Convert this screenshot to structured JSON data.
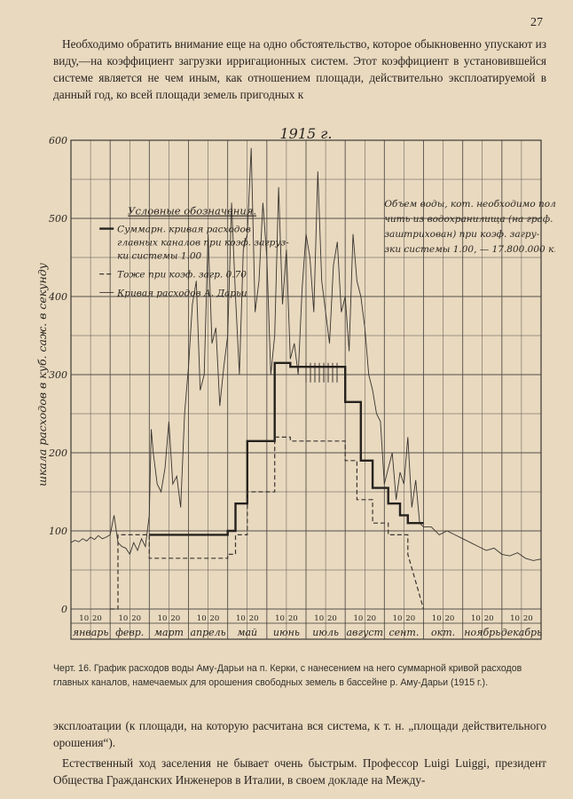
{
  "page_number": "27",
  "paragraph_top": "Необходимо обратить внимание еще на одно обстоятельство, которое обыкновенно упускают из виду,—на коэффициент загрузки ирригационных систем. Этот коэффициент в установившейся системе является не чем иным, как отношением площади, действительно эксплоатируемой в данный год, ко всей площади земель пригодных к",
  "caption": "Черт. 16. График расходов воды Аму-Дарьи на п. Керки, с нанесением на него суммарной кривой расходов главных каналов, намечаемых для орошения свободных земель в бассейне р. Аму-Дарьи (1915 г.).",
  "paragraph_bottom_1": "эксплоатации (к площади, на которую расчитана вся система, к т. н. „площади действительного орошения“).",
  "paragraph_bottom_2": "Естественный ход заселения не бывает очень быстрым. Профессор Luigi Luiggi, президент Общества Гражданских Инженеров в Италии, в своем докладе на Между-",
  "chart_data": {
    "type": "line",
    "title": "1915 г.",
    "ylabel": "шкала расходов в куб. саж. в секунду",
    "ylim": [
      0,
      600
    ],
    "y_ticks": [
      "0",
      "100",
      "200",
      "300",
      "400",
      "500",
      "600"
    ],
    "months": [
      "январь",
      "февр.",
      "март",
      "апрель",
      "май",
      "июнь",
      "июль",
      "август",
      "сент.",
      "окт.",
      "ноябрь",
      "декабрь"
    ],
    "day_ticks": [
      "10",
      "20"
    ],
    "legend_title": "Условные обозначения.",
    "legend_items": [
      "Суммарн. кривая расходов главных каналов при коэф. загрузки системы 1.00",
      "Тоже при коэф. загр. 0.70",
      "Кривая расходов А. Дарьи"
    ],
    "annotation": "Объем воды, кот. необходимо получить из водохранилища (на граф. заштрихован) при коэф. загрузки системы 1.00, — 17.800.000 к. с.",
    "series": [
      {
        "style": "thin",
        "x": [
          0,
          0.1,
          0.2,
          0.3,
          0.4,
          0.5,
          0.6,
          0.7,
          0.8,
          0.9,
          1.0,
          1.1,
          1.2,
          1.3,
          1.4,
          1.5,
          1.6,
          1.7,
          1.8,
          1.9,
          2.0,
          2.05,
          2.1,
          2.2,
          2.3,
          2.4,
          2.5,
          2.6,
          2.7,
          2.8,
          2.9,
          3.0,
          3.1,
          3.2,
          3.3,
          3.4,
          3.5,
          3.6,
          3.7,
          3.8,
          3.9,
          4.0,
          4.1,
          4.2,
          4.3,
          4.4,
          4.5,
          4.6,
          4.7,
          4.8,
          4.9,
          5.0,
          5.1,
          5.2,
          5.3,
          5.4,
          5.5,
          5.6,
          5.7,
          5.8,
          5.9,
          6.0,
          6.1,
          6.2,
          6.3,
          6.4,
          6.5,
          6.6,
          6.7,
          6.8,
          6.9,
          7.0,
          7.1,
          7.2,
          7.3,
          7.4,
          7.5,
          7.6,
          7.7,
          7.8,
          7.9,
          8.0,
          8.1,
          8.2,
          8.3,
          8.4,
          8.5,
          8.6,
          8.7,
          8.8,
          8.9,
          9.0,
          9.2,
          9.4,
          9.6,
          9.8,
          10.0,
          10.2,
          10.4,
          10.6,
          10.8,
          11.0,
          11.2,
          11.4,
          11.6,
          11.8,
          12.0
        ],
        "y": [
          85,
          88,
          86,
          90,
          87,
          92,
          89,
          94,
          90,
          92,
          95,
          120,
          85,
          80,
          78,
          70,
          85,
          75,
          90,
          80,
          120,
          230,
          200,
          160,
          150,
          180,
          240,
          160,
          170,
          130,
          250,
          310,
          390,
          420,
          280,
          300,
          480,
          340,
          360,
          260,
          310,
          350,
          520,
          400,
          300,
          460,
          480,
          590,
          380,
          420,
          520,
          450,
          300,
          350,
          540,
          390,
          460,
          320,
          340,
          300,
          410,
          480,
          450,
          380,
          560,
          420,
          380,
          340,
          440,
          470,
          380,
          400,
          330,
          480,
          420,
          400,
          360,
          300,
          280,
          250,
          240,
          160,
          180,
          200,
          140,
          175,
          160,
          220,
          130,
          165,
          110,
          105,
          105,
          95,
          100,
          95,
          90,
          85,
          80,
          75,
          78,
          70,
          68,
          72,
          65,
          62,
          64
        ]
      },
      {
        "style": "bold",
        "x": [
          2,
          4,
          4,
          4.2,
          4.2,
          4.5,
          4.5,
          5.2,
          5.2,
          5.6,
          5.6,
          7,
          7,
          7.4,
          7.4,
          7.7,
          7.7,
          8.1,
          8.1,
          8.4,
          8.4,
          8.6,
          8.6,
          9
        ],
        "y": [
          95,
          95,
          100,
          100,
          135,
          135,
          215,
          215,
          315,
          315,
          310,
          310,
          265,
          265,
          190,
          190,
          155,
          155,
          135,
          135,
          120,
          120,
          110,
          110
        ]
      },
      {
        "style": "dashed",
        "x": [
          1,
          1.2,
          1.2,
          2,
          2,
          4,
          4,
          4.2,
          4.2,
          4.5,
          4.5,
          5.2,
          5.2,
          5.6,
          5.6,
          7,
          7,
          7.3,
          7.3,
          7.7,
          7.7,
          8.1,
          8.1,
          8.6,
          8.6,
          9
        ],
        "y": [
          0,
          0,
          95,
          95,
          65,
          65,
          70,
          70,
          95,
          95,
          150,
          150,
          220,
          220,
          215,
          215,
          190,
          190,
          140,
          140,
          110,
          110,
          95,
          95,
          70,
          0
        ]
      },
      {
        "style": "hatched",
        "x": [
          6.0,
          6.4
        ],
        "y": [
          315,
          315
        ]
      }
    ]
  }
}
